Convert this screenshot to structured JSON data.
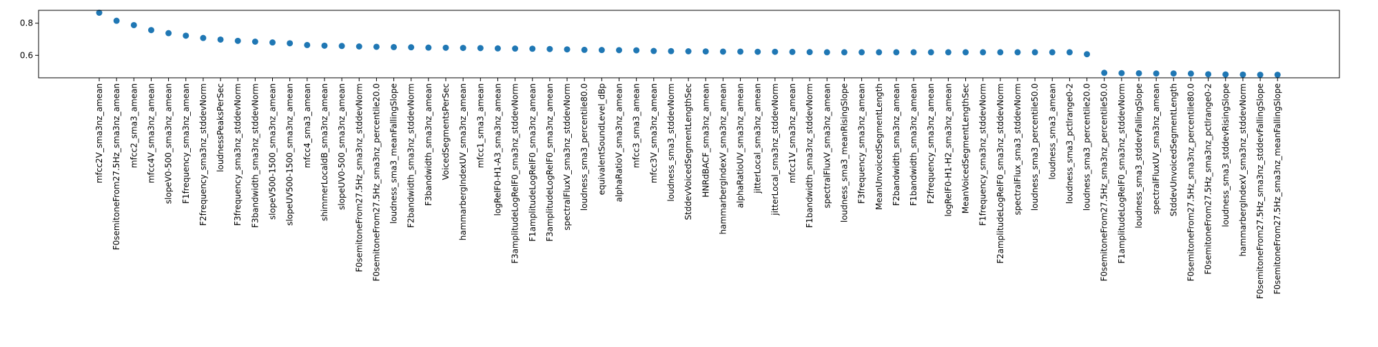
{
  "chart_data": {
    "type": "scatter",
    "title": "",
    "xlabel": "",
    "ylabel": "",
    "ylim": [
      0.46,
      0.88
    ],
    "yticks": [
      0.6,
      0.8
    ],
    "grid": false,
    "marker_color": "#1f77b4",
    "categories": [
      "mfcc2V_sma3nz_amean",
      "F0semitoneFrom27.5Hz_sma3nz_amean",
      "mfcc2_sma3_amean",
      "mfcc4V_sma3nz_amean",
      "slopeV0-500_sma3nz_amean",
      "F1frequency_sma3nz_amean",
      "F2frequency_sma3nz_stddevNorm",
      "loudnessPeaksPerSec",
      "F3frequency_sma3nz_stddevNorm",
      "F3bandwidth_sma3nz_stddevNorm",
      "slopeV500-1500_sma3nz_amean",
      "slopeUV500-1500_sma3nz_amean",
      "mfcc4_sma3_amean",
      "shimmerLocaldB_sma3nz_amean",
      "slopeUV0-500_sma3nz_amean",
      "F0semitoneFrom27.5Hz_sma3nz_stddevNorm",
      "F0semitoneFrom27.5Hz_sma3nz_percentile20.0",
      "loudness_sma3_meanFallingSlope",
      "F2bandwidth_sma3nz_stddevNorm",
      "F3bandwidth_sma3nz_amean",
      "VoicedSegmentsPerSec",
      "hammarbergIndexUV_sma3nz_amean",
      "mfcc1_sma3_amean",
      "logRelF0-H1-A3_sma3nz_amean",
      "F3amplitudeLogRelF0_sma3nz_stddevNorm",
      "F1amplitudeLogRelF0_sma3nz_amean",
      "F3amplitudeLogRelF0_sma3nz_amean",
      "spectralFluxV_sma3nz_stddevNorm",
      "loudness_sma3_percentile80.0",
      "equivalentSoundLevel_dBp",
      "alphaRatioV_sma3nz_amean",
      "mfcc3_sma3_amean",
      "mfcc3V_sma3nz_amean",
      "loudness_sma3_stddevNorm",
      "StddevVoicedSegmentLengthSec",
      "HNRdBACF_sma3nz_amean",
      "hammarbergIndexV_sma3nz_amean",
      "alphaRatioUV_sma3nz_amean",
      "jitterLocal_sma3nz_amean",
      "jitterLocal_sma3nz_stddevNorm",
      "mfcc1V_sma3nz_amean",
      "F1bandwidth_sma3nz_stddevNorm",
      "spectralFluxV_sma3nz_amean",
      "loudness_sma3_meanRisingSlope",
      "F3frequency_sma3nz_amean",
      "MeanUnvoicedSegmentLength",
      "F2bandwidth_sma3nz_amean",
      "F1bandwidth_sma3nz_amean",
      "F2frequency_sma3nz_amean",
      "logRelF0-H1-H2_sma3nz_amean",
      "MeanVoicedSegmentLengthSec",
      "F1frequency_sma3nz_stddevNorm",
      "F2amplitudeLogRelF0_sma3nz_stddevNorm",
      "spectralFlux_sma3_stddevNorm",
      "loudness_sma3_percentile50.0",
      "loudness_sma3_amean",
      "loudness_sma3_pctlrange0-2",
      "loudness_sma3_percentile20.0",
      "F0semitoneFrom27.5Hz_sma3nz_percentile50.0",
      "F1amplitudeLogRelF0_sma3nz_stddevNorm",
      "loudness_sma3_stddevFallingSlope",
      "spectralFluxUV_sma3nz_amean",
      "StddevUnvoicedSegmentLength",
      "F0semitoneFrom27.5Hz_sma3nz_percentile80.0",
      "F0semitoneFrom27.5Hz_sma3nz_pctlrange0-2",
      "loudness_sma3_stddevRisingSlope",
      "hammarbergIndexV_sma3nz_stddevNorm",
      "F0semitoneFrom27.5Hz_sma3nz_stddevFallingSlope",
      "F0semitoneFrom27.5Hz_sma3nz_meanFallingSlope"
    ],
    "values": [
      0.865,
      0.815,
      0.788,
      0.757,
      0.738,
      0.722,
      0.708,
      0.698,
      0.69,
      0.685,
      0.68,
      0.675,
      0.664,
      0.66,
      0.658,
      0.655,
      0.653,
      0.651,
      0.65,
      0.648,
      0.647,
      0.646,
      0.645,
      0.643,
      0.642,
      0.641,
      0.639,
      0.637,
      0.634,
      0.633,
      0.632,
      0.631,
      0.627,
      0.626,
      0.625,
      0.624,
      0.623,
      0.623,
      0.622,
      0.622,
      0.621,
      0.62,
      0.619,
      0.619,
      0.619,
      0.619,
      0.619,
      0.619,
      0.619,
      0.619,
      0.619,
      0.619,
      0.619,
      0.619,
      0.619,
      0.619,
      0.619,
      0.607,
      0.491,
      0.489,
      0.488,
      0.487,
      0.487,
      0.486,
      0.482,
      0.481,
      0.48,
      0.479,
      0.479
    ]
  }
}
